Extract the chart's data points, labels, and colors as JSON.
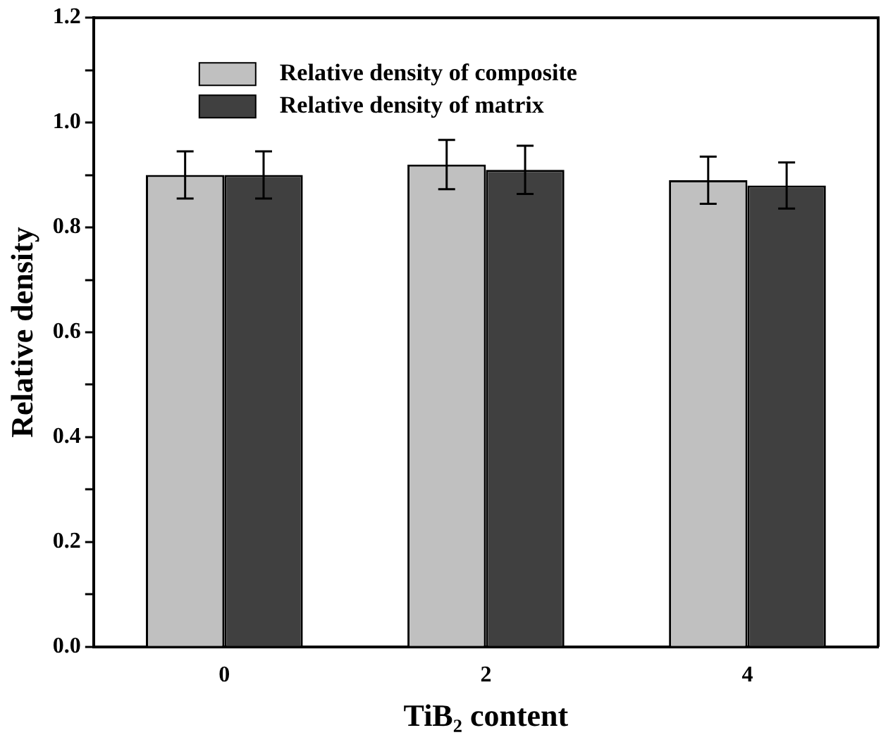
{
  "chart_data": {
    "type": "bar",
    "xlabel": "TiB₂ content",
    "ylabel": "Relative density",
    "categories": [
      "0",
      "2",
      "4"
    ],
    "series": [
      {
        "name": "Relative density of composite",
        "color": "#c0c0c0",
        "values": [
          0.9,
          0.92,
          0.89
        ],
        "errors": [
          0.045,
          0.047,
          0.045
        ]
      },
      {
        "name": "Relative density of matrix",
        "color": "#404040",
        "values": [
          0.9,
          0.91,
          0.88
        ],
        "errors": [
          0.045,
          0.046,
          0.044
        ]
      }
    ],
    "ylim": [
      0,
      1.2
    ],
    "yticks": [
      {
        "value": 0,
        "label": "0.0"
      },
      {
        "value": 0.1,
        "label": null
      },
      0.2,
      {
        "value": 0.3,
        "label": null
      },
      0.4,
      {
        "value": 0.5,
        "label": null
      },
      0.6,
      {
        "value": 0.7,
        "label": null
      },
      0.8,
      {
        "value": 0.9,
        "label": null
      },
      {
        "value": 1,
        "label": "1.0"
      },
      {
        "value": 1.1,
        "label": null
      },
      1.2
    ],
    "grid": false,
    "legend": "top left"
  }
}
